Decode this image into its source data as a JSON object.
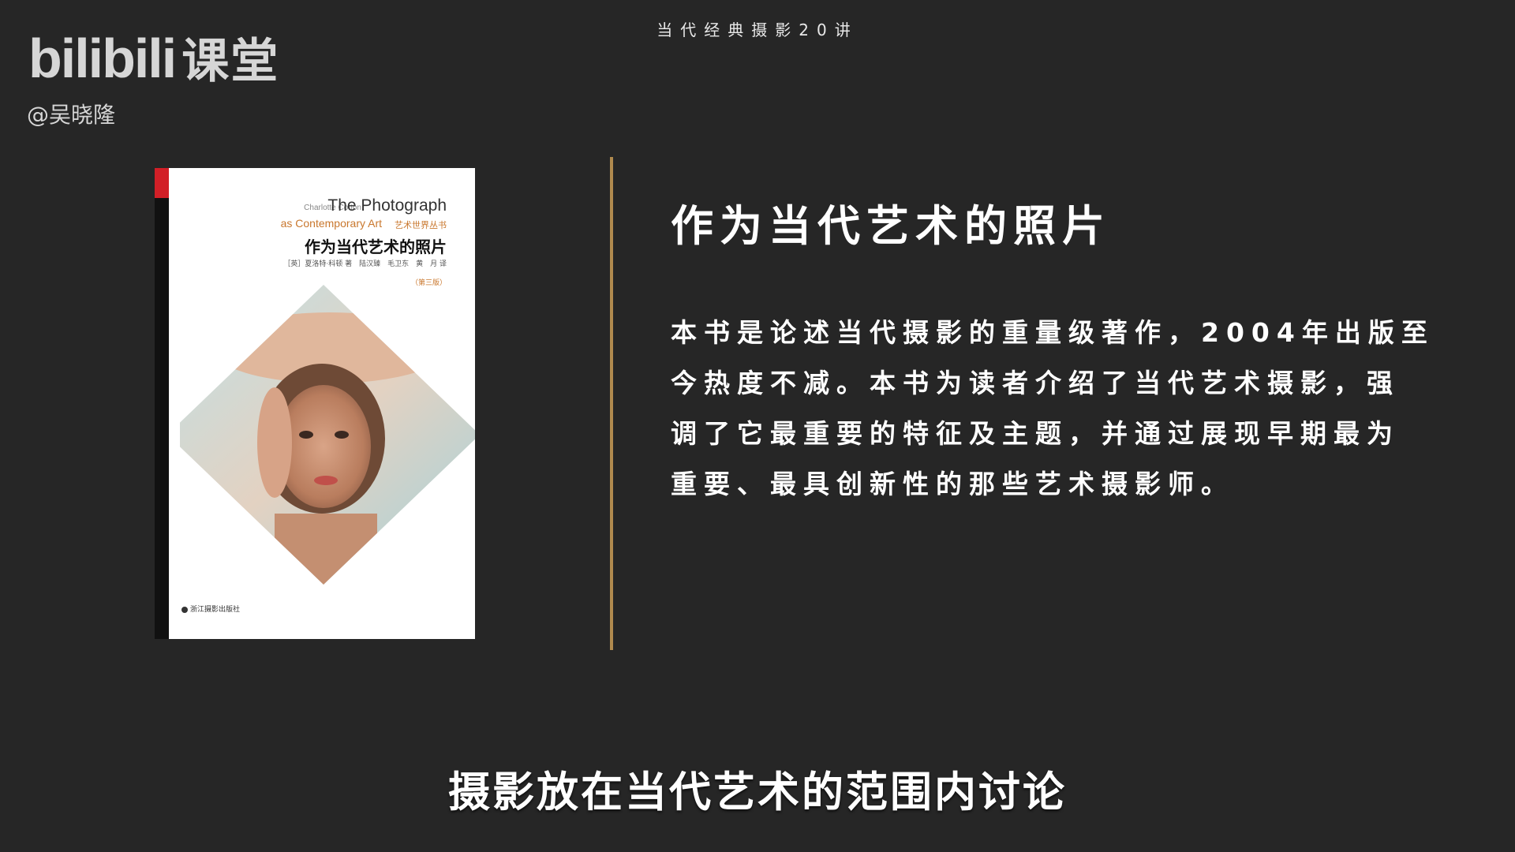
{
  "header": {
    "series_title": "当代经典摄影20讲"
  },
  "watermark": {
    "logo_text": "bilibili",
    "logo_suffix": "课堂",
    "uploader": "@吴晓隆"
  },
  "book": {
    "author_en": "Charlotte Cotton",
    "title_en": "The Photograph",
    "subtitle_en": "as Contemporary Art",
    "series_cn": "艺术世界丛书",
    "title_cn": "作为当代艺术的照片",
    "credits": "［英］夏洛特·科顿 著　陆汉臻　毛卫东　黄　月 译",
    "edition": "（第三版）",
    "publisher": "浙江摄影出版社"
  },
  "content": {
    "heading": "作为当代艺术的照片",
    "description_lines": [
      "本书是论述当代摄影的重量级著作，2004年出版至",
      "今热度不减。本书为读者介绍了当代艺术摄影，强",
      "调了它最重要的特征及主题，并通过展现早期最为",
      "重要、最具创新性的那些艺术摄影师。"
    ]
  },
  "caption": {
    "text": "摄影放在当代艺术的范围内讨论"
  },
  "colors": {
    "background": "#262626",
    "divider": "#b08a4e",
    "book_spine": "#111111",
    "book_accent_red": "#d21f27",
    "book_accent_orange": "#c9772d"
  }
}
